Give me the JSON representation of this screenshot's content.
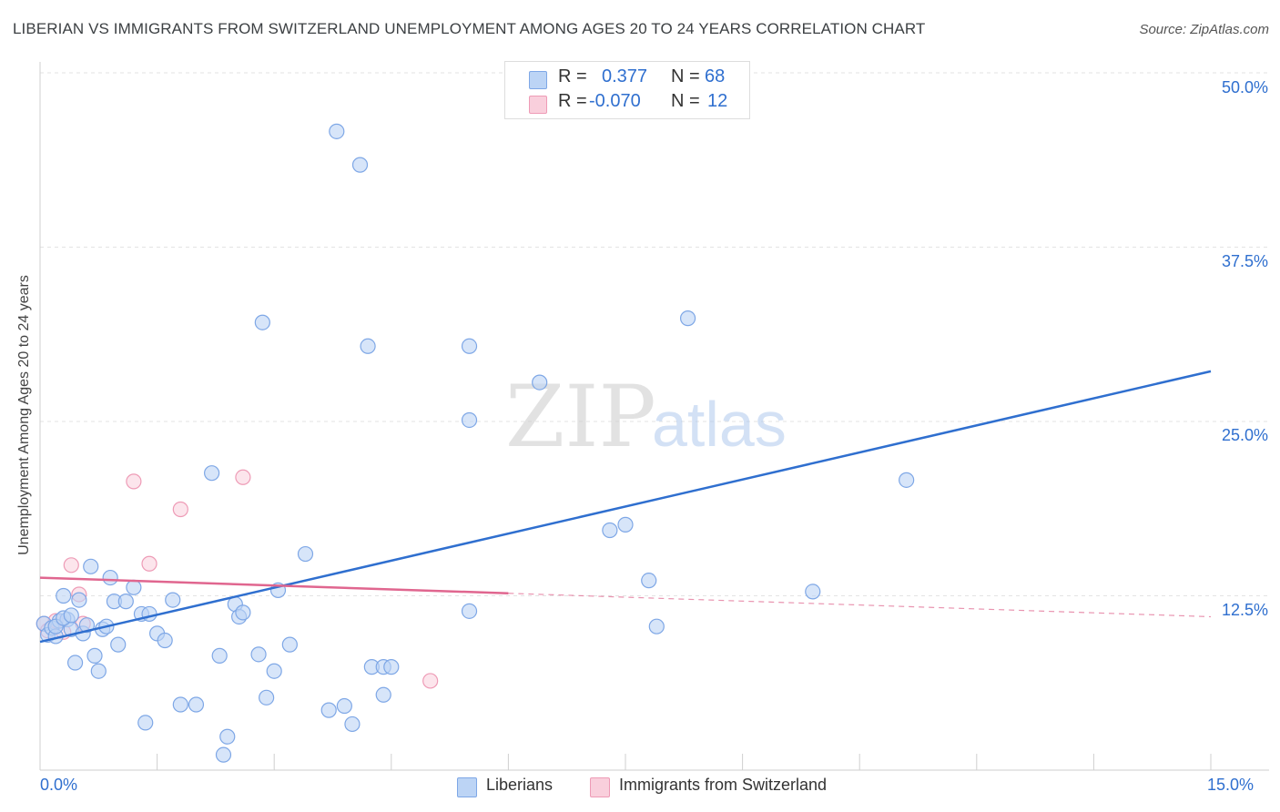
{
  "title": "LIBERIAN VS IMMIGRANTS FROM SWITZERLAND UNEMPLOYMENT AMONG AGES 20 TO 24 YEARS CORRELATION CHART",
  "source": "Source: ZipAtlas.com",
  "watermark": {
    "zip": "ZIP",
    "atlas": "atlas"
  },
  "stats": {
    "r_label": "R =",
    "n_label": "N =",
    "liberians": {
      "r": "0.377",
      "n": "68"
    },
    "swiss": {
      "r": "-0.070",
      "n": "12"
    }
  },
  "legend": {
    "liberians": "Liberians",
    "swiss": "Immigrants from Switzerland"
  },
  "colors": {
    "blue_fill": "#bcd4f5",
    "blue_stroke": "#7ea7e6",
    "blue_line": "#2f6fcf",
    "pink_fill": "#f9cfdc",
    "pink_stroke": "#ee9bb6",
    "pink_line": "#e0668f"
  },
  "chart_data": {
    "type": "scatter",
    "title": "LIBERIAN VS IMMIGRANTS FROM SWITZERLAND UNEMPLOYMENT AMONG AGES 20 TO 24 YEARS CORRELATION CHART",
    "xlabel": "",
    "ylabel": "Unemployment Among Ages 20 to 24 years",
    "xlim": [
      0,
      15
    ],
    "ylim": [
      0,
      50
    ],
    "x_tick_labels": [
      "0.0%",
      "15.0%"
    ],
    "y_ticks": [
      12.5,
      25.0,
      37.5,
      50.0
    ],
    "y_tick_labels": [
      "12.5%",
      "25.0%",
      "37.5%",
      "50.0%"
    ],
    "series": [
      {
        "name": "Liberians",
        "points": [
          [
            0.05,
            10.5
          ],
          [
            0.1,
            9.7
          ],
          [
            0.15,
            10.2
          ],
          [
            0.2,
            9.6
          ],
          [
            0.25,
            10.7
          ],
          [
            0.3,
            12.5
          ],
          [
            0.35,
            10.8
          ],
          [
            0.4,
            10.1
          ],
          [
            0.45,
            7.7
          ],
          [
            0.5,
            12.2
          ],
          [
            0.55,
            9.8
          ],
          [
            0.6,
            10.4
          ],
          [
            0.65,
            14.6
          ],
          [
            0.7,
            8.2
          ],
          [
            0.75,
            7.1
          ],
          [
            0.8,
            10.1
          ],
          [
            0.85,
            10.3
          ],
          [
            0.9,
            13.8
          ],
          [
            0.95,
            12.1
          ],
          [
            1.0,
            9.0
          ],
          [
            1.1,
            12.1
          ],
          [
            1.2,
            13.1
          ],
          [
            1.3,
            11.2
          ],
          [
            1.35,
            3.4
          ],
          [
            1.4,
            11.2
          ],
          [
            1.5,
            9.8
          ],
          [
            1.6,
            9.3
          ],
          [
            1.7,
            12.2
          ],
          [
            1.8,
            4.7
          ],
          [
            2.0,
            4.7
          ],
          [
            2.2,
            21.3
          ],
          [
            2.3,
            8.2
          ],
          [
            2.35,
            1.1
          ],
          [
            2.4,
            2.4
          ],
          [
            2.5,
            11.9
          ],
          [
            2.55,
            11.0
          ],
          [
            2.6,
            11.3
          ],
          [
            2.8,
            8.3
          ],
          [
            2.85,
            32.1
          ],
          [
            2.9,
            5.2
          ],
          [
            3.0,
            7.1
          ],
          [
            3.05,
            12.9
          ],
          [
            3.2,
            9.0
          ],
          [
            3.4,
            15.5
          ],
          [
            3.7,
            4.3
          ],
          [
            3.8,
            45.8
          ],
          [
            3.9,
            4.6
          ],
          [
            4.0,
            3.3
          ],
          [
            4.1,
            43.4
          ],
          [
            4.2,
            30.4
          ],
          [
            4.25,
            7.4
          ],
          [
            4.4,
            5.4
          ],
          [
            4.4,
            7.4
          ],
          [
            4.5,
            7.4
          ],
          [
            5.5,
            30.4
          ],
          [
            5.5,
            25.1
          ],
          [
            5.5,
            11.4
          ],
          [
            6.4,
            27.8
          ],
          [
            7.3,
            17.2
          ],
          [
            7.5,
            17.6
          ],
          [
            7.8,
            13.6
          ],
          [
            7.9,
            10.3
          ],
          [
            8.3,
            32.4
          ],
          [
            9.9,
            12.8
          ],
          [
            11.1,
            20.8
          ],
          [
            0.2,
            10.3
          ],
          [
            0.3,
            10.9
          ],
          [
            0.4,
            11.1
          ]
        ]
      },
      {
        "name": "Immigrants from Switzerland",
        "points": [
          [
            0.05,
            10.5
          ],
          [
            0.1,
            10.0
          ],
          [
            0.2,
            10.7
          ],
          [
            0.3,
            9.9
          ],
          [
            0.4,
            14.7
          ],
          [
            0.5,
            12.6
          ],
          [
            0.55,
            10.5
          ],
          [
            1.2,
            20.7
          ],
          [
            1.4,
            14.8
          ],
          [
            1.8,
            18.7
          ],
          [
            2.6,
            21.0
          ],
          [
            5.0,
            6.4
          ]
        ]
      }
    ],
    "trend_lines": [
      {
        "name": "Liberians",
        "x": [
          0,
          15
        ],
        "y": [
          9.2,
          28.6
        ]
      },
      {
        "name": "Immigrants from Switzerland",
        "x": [
          0,
          15
        ],
        "y": [
          13.8,
          11.0
        ],
        "solid_until_x": 6.0
      }
    ]
  }
}
